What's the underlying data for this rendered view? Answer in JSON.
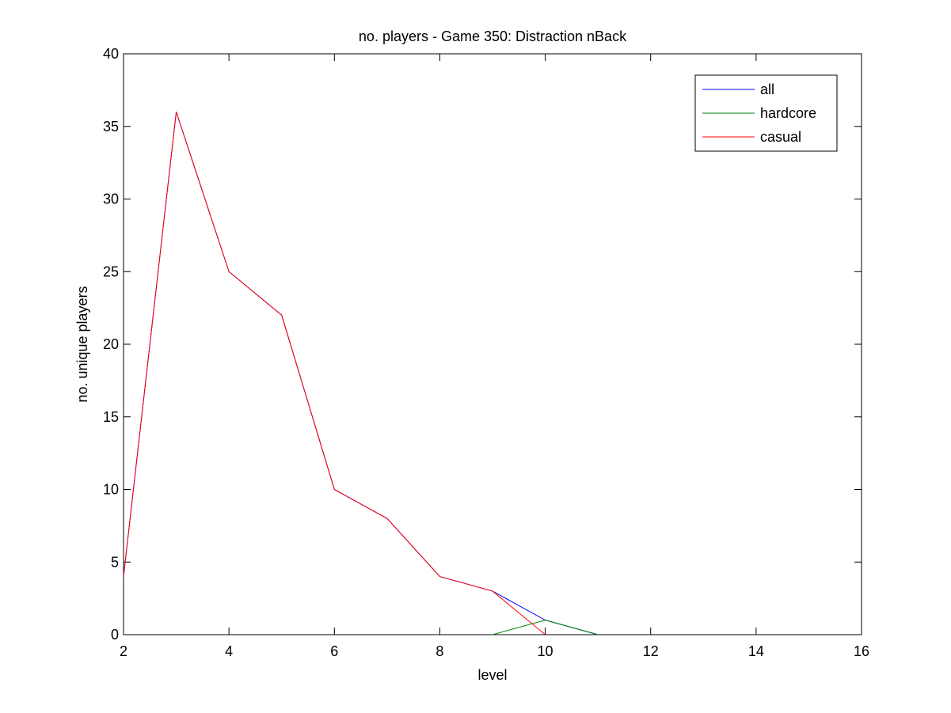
{
  "chart_data": {
    "type": "line",
    "title": "no. players - Game 350: Distraction nBack",
    "xlabel": "level",
    "ylabel": "no. unique players",
    "xlim": [
      2,
      16
    ],
    "ylim": [
      0,
      40
    ],
    "xticks": [
      2,
      4,
      6,
      8,
      10,
      12,
      14,
      16
    ],
    "yticks": [
      0,
      5,
      10,
      15,
      20,
      25,
      30,
      35,
      40
    ],
    "grid": false,
    "legend_position": "top-right",
    "series": [
      {
        "name": "all",
        "color": "#0000ff",
        "x": [
          2,
          3,
          4,
          5,
          6,
          7,
          8,
          9,
          10,
          11
        ],
        "y": [
          4,
          36,
          25,
          22,
          10,
          8,
          4,
          3,
          1,
          0
        ]
      },
      {
        "name": "hardcore",
        "color": "#008000",
        "x": [
          9,
          10,
          11
        ],
        "y": [
          0,
          1,
          0
        ]
      },
      {
        "name": "casual",
        "color": "#ff0000",
        "x": [
          2,
          3,
          4,
          5,
          6,
          7,
          8,
          9,
          10
        ],
        "y": [
          4,
          36,
          25,
          22,
          10,
          8,
          4,
          3,
          0
        ]
      }
    ]
  }
}
